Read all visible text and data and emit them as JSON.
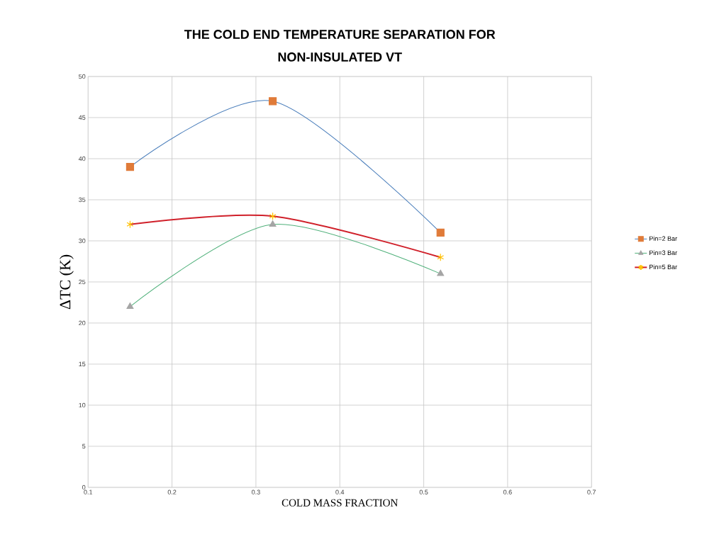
{
  "chart_data": {
    "type": "line",
    "title": "THE COLD END TEMPERATURE SEPARATION FOR NON-INSULATED VT",
    "xlabel": "COLD MASS FRACTION",
    "ylabel": "ΔTC  (K)",
    "x": [
      0.15,
      0.32,
      0.52
    ],
    "series": [
      {
        "name": "Pin=2 Bar",
        "color": "#4a7ebb",
        "colors": [
          "#e07b39",
          "#e07b39",
          "#e07b39"
        ],
        "marker": "square",
        "values": [
          39,
          47,
          31
        ]
      },
      {
        "name": "Pin=3 Bar",
        "color": "#4fb07a",
        "colors": [
          "#a5a5a5",
          "#a5a5a5",
          "#a5a5a5"
        ],
        "marker": "triangle",
        "values": [
          22,
          32,
          26
        ]
      },
      {
        "name": "Pin=5 Bar",
        "color": "#d0202a",
        "colors": [
          "#ffc000",
          "#ffc000",
          "#ffc000"
        ],
        "marker": "cross",
        "values": [
          32,
          33,
          28
        ]
      }
    ],
    "xlim": [
      0.1,
      0.7
    ],
    "xticks": [
      0.1,
      0.2,
      0.3,
      0.4,
      0.5,
      0.6,
      0.7
    ],
    "ylim": [
      0,
      50
    ],
    "yticks": [
      0,
      5,
      10,
      15,
      20,
      25,
      30,
      35,
      40,
      45,
      50
    ],
    "grid": true,
    "legend": "right",
    "line_style": "solid"
  }
}
